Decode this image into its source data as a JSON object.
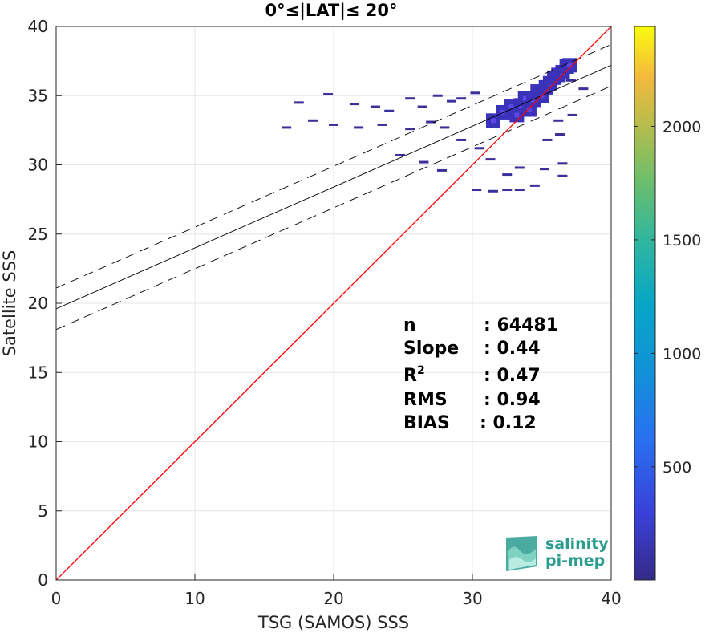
{
  "chart_data": {
    "type": "scatter",
    "title": "0°≤|LAT|≤ 20°",
    "xlabel": "TSG (SAMOS) SSS",
    "ylabel": "Satellite SSS",
    "xlim": [
      0,
      40
    ],
    "ylim": [
      0,
      40
    ],
    "xticks": [
      "0",
      "10",
      "20",
      "30",
      "40"
    ],
    "yticks": [
      "0",
      "5",
      "10",
      "15",
      "20",
      "25",
      "30",
      "35",
      "40"
    ],
    "grid": true,
    "plot_style": "2D density histogram",
    "identity_line": {
      "color": "#ff0000",
      "from": [
        0,
        0
      ],
      "to": [
        40,
        40
      ]
    },
    "regression": {
      "intercept": 19.6,
      "slope": 0.44,
      "band": 1.5
    },
    "density_points": [
      [
        17.5,
        34.5
      ],
      [
        19.6,
        35.1
      ],
      [
        21.5,
        34.4
      ],
      [
        23,
        34.2
      ],
      [
        24,
        33.9
      ],
      [
        25.5,
        34.8
      ],
      [
        26.4,
        34.2
      ],
      [
        27.5,
        35.0
      ],
      [
        28.5,
        34.6
      ],
      [
        29.2,
        34.8
      ],
      [
        30.2,
        35.2
      ],
      [
        16.6,
        32.7
      ],
      [
        18.5,
        33.2
      ],
      [
        20,
        32.9
      ],
      [
        21.8,
        32.7
      ],
      [
        23.5,
        32.9
      ],
      [
        25.5,
        32.6
      ],
      [
        27,
        33.1
      ],
      [
        28,
        32.7
      ],
      [
        24.8,
        30.7
      ],
      [
        26.5,
        30.2
      ],
      [
        27.8,
        29.6
      ],
      [
        29.2,
        31.8
      ],
      [
        30.5,
        31.2
      ],
      [
        31.3,
        30.4
      ],
      [
        32.5,
        29.3
      ],
      [
        33.4,
        29.8
      ],
      [
        35.2,
        29.7
      ],
      [
        36.5,
        29.2
      ],
      [
        34.5,
        28.5
      ],
      [
        30.3,
        28.2
      ],
      [
        31.5,
        28.1
      ],
      [
        32.5,
        28.2
      ],
      [
        33.4,
        28.2
      ],
      [
        35.4,
        31.8
      ],
      [
        36.3,
        32.2
      ],
      [
        36.5,
        30.1
      ],
      [
        36.2,
        33.2
      ],
      [
        37.2,
        33.6
      ],
      [
        37.1,
        36.1
      ],
      [
        38,
        35.5
      ]
    ],
    "density_core": [
      [
        31.5,
        33.2
      ],
      [
        32.2,
        33.8
      ],
      [
        32.8,
        34.2
      ],
      [
        33.2,
        33.6
      ],
      [
        33.5,
        34.3
      ],
      [
        33.8,
        34.8
      ],
      [
        34.1,
        34.0
      ],
      [
        34.4,
        34.7
      ],
      [
        34.7,
        35.3
      ],
      [
        35.0,
        35.0
      ],
      [
        35.3,
        35.6
      ],
      [
        35.6,
        35.9
      ],
      [
        35.9,
        36.3
      ],
      [
        36.2,
        36.5
      ],
      [
        36.5,
        36.7
      ],
      [
        36.8,
        37.1
      ],
      [
        37.0,
        37.2
      ]
    ],
    "colorbar": {
      "ticks": [
        "500",
        "1000",
        "1500",
        "2000"
      ],
      "tick_values": [
        500,
        1000,
        1500,
        2000
      ],
      "range": [
        1,
        2440
      ],
      "colormap": "parula"
    },
    "stats": [
      {
        "label": "n",
        "value": ": 64481"
      },
      {
        "label": "Slope",
        "value": ": 0.44"
      },
      {
        "label": "R",
        "sup": "2",
        "value": ": 0.47"
      },
      {
        "label": "RMS",
        "value": ": 0.94"
      },
      {
        "label": "BIAS",
        "value": ": 0.12"
      }
    ]
  },
  "logo": {
    "line1": "salinity",
    "line2": "pi-mep"
  }
}
